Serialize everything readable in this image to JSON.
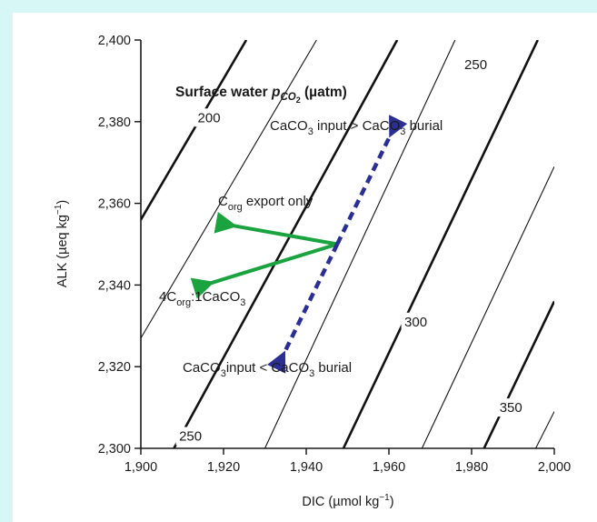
{
  "chart_data": {
    "type": "line",
    "title_parts": [
      "Surface water ",
      "p",
      "CO",
      "2",
      " (µatm)"
    ],
    "xlabel_parts": [
      "DIC (µmol kg",
      "−1",
      ")"
    ],
    "ylabel_parts": [
      "ALK (µeq kg",
      "−1",
      ")"
    ],
    "xlim": [
      1900,
      2000
    ],
    "ylim": [
      2300,
      2400
    ],
    "x_ticks": [
      1900,
      1920,
      1940,
      1960,
      1980,
      2000
    ],
    "x_tick_labels": [
      "1,900",
      "1,920",
      "1,940",
      "1,960",
      "1,980",
      "2,000"
    ],
    "y_ticks": [
      2300,
      2320,
      2340,
      2360,
      2380,
      2400
    ],
    "y_tick_labels": [
      "2,300",
      "2,320",
      "2,340",
      "2,360",
      "2,380",
      "2,400"
    ],
    "isolines": [
      {
        "bold": true,
        "points": [
          [
            1900,
            2356
          ],
          [
            1925.5,
            2400
          ]
        ]
      },
      {
        "bold": false,
        "points": [
          [
            1900,
            2327
          ],
          [
            1942.5,
            2400
          ]
        ]
      },
      {
        "bold": true,
        "points": [
          [
            1908,
            2300
          ],
          [
            1962,
            2400
          ]
        ]
      },
      {
        "bold": false,
        "points": [
          [
            1930,
            2300
          ],
          [
            1976,
            2400
          ]
        ]
      },
      {
        "bold": true,
        "points": [
          [
            1949,
            2300
          ],
          [
            1996,
            2400
          ]
        ]
      },
      {
        "bold": false,
        "points": [
          [
            1968,
            2300
          ],
          [
            2000,
            2369
          ]
        ]
      },
      {
        "bold": true,
        "points": [
          [
            1983,
            2300
          ],
          [
            2000,
            2336
          ]
        ]
      },
      {
        "bold": false,
        "points": [
          [
            1995.5,
            2300
          ],
          [
            2000,
            2309
          ]
        ]
      }
    ],
    "isoline_labels": [
      {
        "text": "200",
        "x": 1916.5,
        "y": 2381
      },
      {
        "text": "250",
        "x": 1981,
        "y": 2394
      },
      {
        "text": "250",
        "x": 1912,
        "y": 2303
      },
      {
        "text": "300",
        "x": 1966.5,
        "y": 2331
      },
      {
        "text": "350",
        "x": 1989.5,
        "y": 2310
      }
    ],
    "arrows": [
      {
        "name": "corg-export-arrow",
        "color": "#1aa33f",
        "dashed": false,
        "from": [
          1947.5,
          2350
        ],
        "to": [
          1922.5,
          2354.5
        ]
      },
      {
        "name": "4corg-caco3-arrow",
        "color": "#1aa33f",
        "dashed": false,
        "from": [
          1947.5,
          2350
        ],
        "to": [
          1917,
          2340.5
        ]
      },
      {
        "name": "caco3-input-greater-arrow",
        "color": "#2b2f93",
        "dashed": true,
        "from": [
          1947.5,
          2350
        ],
        "to": [
          1960.5,
          2377
        ]
      },
      {
        "name": "caco3-input-less-arrow",
        "color": "#2b2f93",
        "dashed": true,
        "from": [
          1947.5,
          2350
        ],
        "to": [
          1934.5,
          2323
        ]
      }
    ],
    "annotations": {
      "corg_export": {
        "a": "C",
        "sub": "org",
        "b": " export only"
      },
      "four_corg": {
        "a": "4C",
        "sub1": "org",
        "b": ":1CaCO",
        "sub2": "3"
      },
      "caco3_gt": {
        "a": "CaCO",
        "sub1": "3",
        "b": " input > CaCO",
        "sub2": "3",
        "c": " burial"
      },
      "caco3_lt": {
        "a": "CaCO",
        "sub1": "3",
        "b": "input < CaCO",
        "sub2": "3",
        "c": " burial"
      }
    },
    "colors": {
      "background": "#d7f7f7",
      "green_arrow": "#1aa33f",
      "blue_arrow": "#2b2f93"
    }
  }
}
